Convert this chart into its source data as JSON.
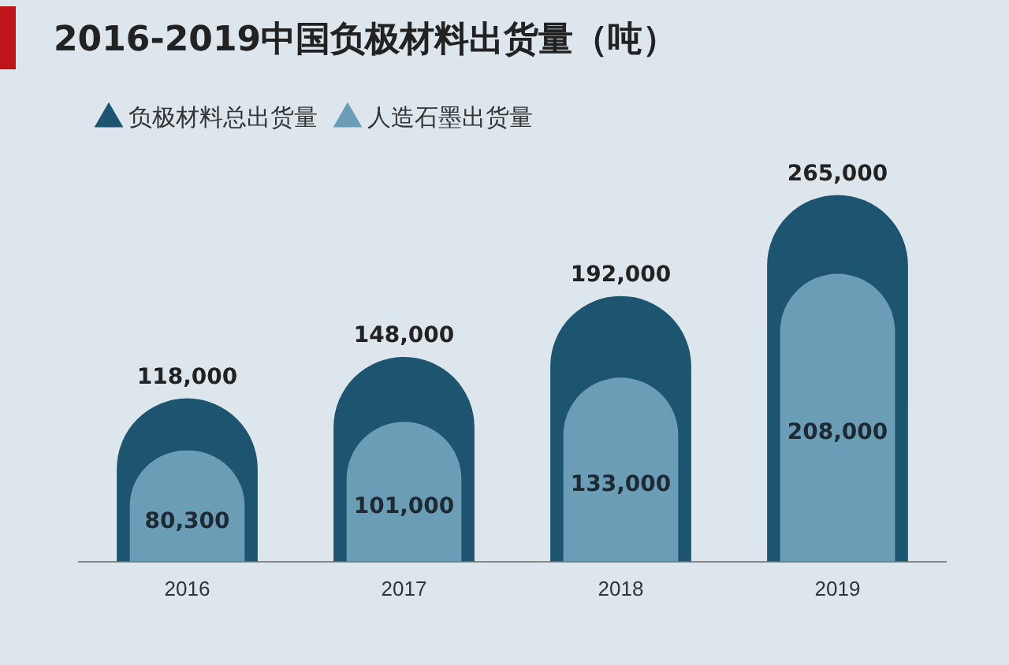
{
  "chart_data": {
    "type": "bar",
    "title": "2016-2019中国负极材料出货量（吨）",
    "categories": [
      "2016",
      "2017",
      "2018",
      "2019"
    ],
    "series": [
      {
        "name": "负极材料总出货量",
        "color": "#1d5470",
        "values": [
          118000,
          148000,
          192000,
          265000
        ],
        "value_labels": [
          "118,000",
          "148,000",
          "192,000",
          "265,000"
        ]
      },
      {
        "name": "人造石墨出货量",
        "color": "#6b9db6",
        "values": [
          80300,
          101000,
          133000,
          208000
        ],
        "value_labels": [
          "80,300",
          "101,000",
          "133,000",
          "208,000"
        ]
      }
    ],
    "legend": "top left",
    "grid": false
  }
}
